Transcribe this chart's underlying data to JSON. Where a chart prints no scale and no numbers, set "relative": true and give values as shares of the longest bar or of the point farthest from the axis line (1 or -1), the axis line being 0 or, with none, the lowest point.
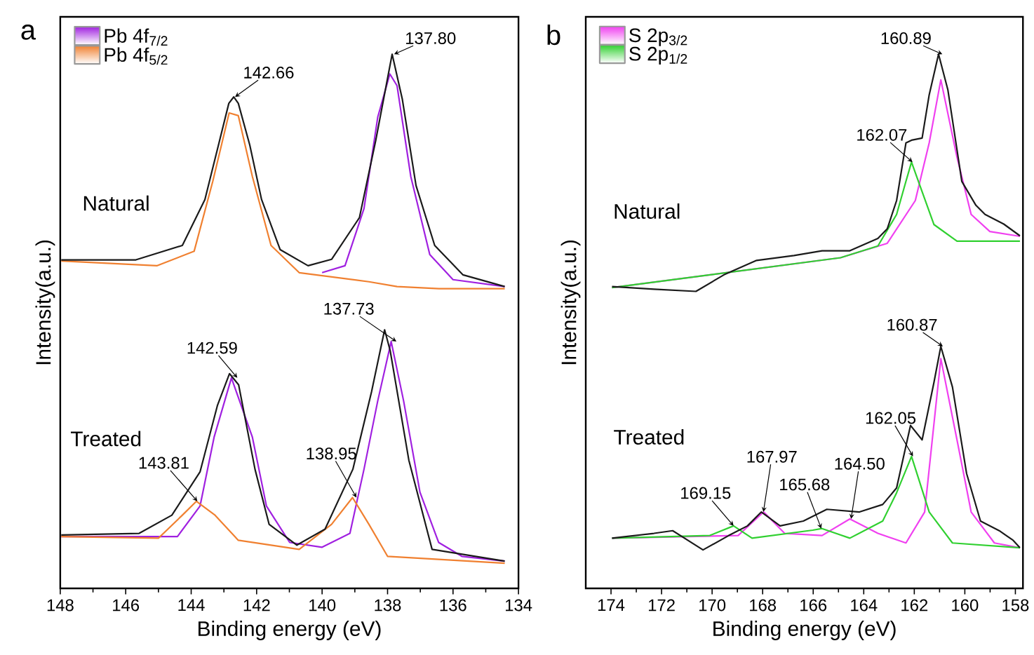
{
  "chart_data": [
    {
      "type": "line",
      "title": "a",
      "xlabel": "Binding energy (eV)",
      "ylabel": "Intensity(a.u.)",
      "relative": true,
      "legend": "top left",
      "xlim": [
        148,
        134
      ],
      "xticks": [
        148,
        146,
        144,
        142,
        140,
        138,
        136,
        134
      ],
      "series": [
        {
          "name": "Pb 4f$_{7/2}$",
          "color": "#a020e0",
          "x": [
            140.0,
            139.3,
            138.72,
            138.3,
            137.93,
            137.71,
            137.29,
            136.71,
            136.0,
            134.42
          ],
          "values": [
            0.591,
            0.604,
            0.711,
            0.882,
            0.963,
            0.941,
            0.771,
            0.625,
            0.578,
            0.565
          ]
        },
        {
          "name": "Pb 4f$_{5/2}$",
          "color": "#f08030",
          "x": [
            147.97,
            145.05,
            143.91,
            143.34,
            142.84,
            142.56,
            142.13,
            141.56,
            140.7,
            138.57,
            137.71,
            136.43,
            134.42
          ],
          "values": [
            0.613,
            0.604,
            0.631,
            0.762,
            0.89,
            0.885,
            0.771,
            0.642,
            0.591,
            0.574,
            0.565,
            0.561,
            0.561
          ]
        },
        {
          "color": "#1a1a1a",
          "x": [
            147.97,
            145.69,
            144.27,
            143.58,
            143.13,
            142.85,
            142.7,
            142.56,
            142.21,
            141.85,
            141.28,
            140.43,
            139.71,
            138.86,
            138.36,
            137.86,
            137.55,
            137.13,
            136.56,
            135.7,
            134.42
          ],
          "values": [
            0.615,
            0.615,
            0.642,
            0.728,
            0.839,
            0.908,
            0.92,
            0.908,
            0.83,
            0.728,
            0.634,
            0.604,
            0.616,
            0.694,
            0.839,
            1.0,
            0.916,
            0.754,
            0.642,
            0.587,
            0.565
          ]
        },
        {
          "color": "#a020e0",
          "x": [
            147.97,
            144.42,
            143.73,
            143.3,
            142.77,
            142.13,
            141.7,
            140.99,
            140.0,
            139.15,
            138.72,
            138.3,
            137.89,
            137.51,
            137.01,
            136.44,
            135.73,
            134.42
          ],
          "values": [
            0.097,
            0.097,
            0.154,
            0.283,
            0.394,
            0.283,
            0.154,
            0.086,
            0.077,
            0.103,
            0.223,
            0.351,
            0.462,
            0.351,
            0.18,
            0.086,
            0.06,
            0.051
          ]
        },
        {
          "color": "#f08030",
          "x": [
            147.97,
            145.0,
            144.27,
            143.84,
            143.27,
            142.56,
            140.7,
            139.71,
            139.07,
            138.57,
            138.0,
            134.42
          ],
          "values": [
            0.097,
            0.094,
            0.137,
            0.163,
            0.137,
            0.09,
            0.073,
            0.12,
            0.17,
            0.12,
            0.06,
            0.047
          ]
        },
        {
          "color": "#1a1a1a",
          "x": [
            147.97,
            145.59,
            144.59,
            143.73,
            143.2,
            142.83,
            142.55,
            142.05,
            141.62,
            140.77,
            139.91,
            139.06,
            138.49,
            138.09,
            137.92,
            137.35,
            136.64,
            134.42
          ],
          "values": [
            0.1,
            0.103,
            0.137,
            0.218,
            0.342,
            0.402,
            0.381,
            0.223,
            0.12,
            0.081,
            0.111,
            0.223,
            0.368,
            0.484,
            0.445,
            0.24,
            0.073,
            0.051
          ]
        }
      ],
      "annotations": [
        "Natural",
        "Treated",
        {
          "text": "142.66",
          "x": 142.66,
          "y": 0.92
        },
        {
          "text": "137.80",
          "x": 137.8,
          "y": 1.0
        },
        {
          "text": "142.59",
          "x": 142.59,
          "y": 0.394
        },
        {
          "text": "137.73",
          "x": 137.73,
          "y": 0.462
        },
        {
          "text": "143.81",
          "x": 143.81,
          "y": 0.163
        },
        {
          "text": "138.95",
          "x": 138.95,
          "y": 0.17
        }
      ]
    },
    {
      "type": "line",
      "title": "b",
      "xlabel": "Binding energy (eV)",
      "ylabel": "Intensity(a.u.)",
      "relative": true,
      "legend": "top left",
      "xlim": [
        175,
        157.7
      ],
      "xticks": [
        174,
        172,
        170,
        168,
        166,
        164,
        162,
        160,
        158
      ],
      "series": [
        {
          "name": "S 2p$_{3/2}$",
          "color": "#f040f0",
          "x": [
            173.96,
            164.92,
            163.07,
            161.96,
            161.41,
            160.95,
            160.31,
            159.75,
            159.01,
            157.82
          ],
          "values": [
            0.563,
            0.619,
            0.646,
            0.726,
            0.834,
            0.952,
            0.807,
            0.7,
            0.668,
            0.659
          ]
        },
        {
          "name": "S 2p$_{1/2}$",
          "color": "#30d030",
          "x": [
            173.96,
            164.92,
            163.44,
            162.7,
            162.33,
            162.11,
            161.77,
            161.22,
            160.31,
            157.82
          ],
          "values": [
            0.563,
            0.619,
            0.641,
            0.7,
            0.762,
            0.798,
            0.753,
            0.681,
            0.65,
            0.65
          ]
        },
        {
          "color": "#1a1a1a",
          "x": [
            173.96,
            172.3,
            170.64,
            169.53,
            168.24,
            166.76,
            165.65,
            164.55,
            163.44,
            163.07,
            162.7,
            162.33,
            162.11,
            161.69,
            161.41,
            161.04,
            160.67,
            160.12,
            159.56,
            159.2,
            158.46,
            157.82
          ],
          "values": [
            0.565,
            0.56,
            0.556,
            0.587,
            0.614,
            0.623,
            0.632,
            0.632,
            0.655,
            0.673,
            0.726,
            0.834,
            0.839,
            0.843,
            0.924,
            1.0,
            0.933,
            0.762,
            0.717,
            0.7,
            0.682,
            0.66
          ]
        },
        {
          "color": "#f040f0",
          "x": [
            173.96,
            168.97,
            167.96,
            167.13,
            165.65,
            164.55,
            163.44,
            162.33,
            161.59,
            160.95,
            160.31,
            159.75,
            158.83,
            157.82
          ],
          "values": [
            0.094,
            0.099,
            0.143,
            0.103,
            0.099,
            0.13,
            0.103,
            0.085,
            0.143,
            0.43,
            0.278,
            0.143,
            0.085,
            0.076
          ]
        },
        {
          "color": "#30d030",
          "x": [
            173.96,
            170.09,
            169.15,
            168.42,
            166.02,
            165.65,
            164.55,
            163.25,
            162.7,
            162.11,
            161.41,
            160.49,
            157.82
          ],
          "values": [
            0.094,
            0.099,
            0.117,
            0.094,
            0.109,
            0.112,
            0.094,
            0.126,
            0.179,
            0.247,
            0.143,
            0.085,
            0.076
          ]
        },
        {
          "color": "#1a1a1a",
          "x": [
            173.96,
            172.3,
            171.56,
            170.36,
            169.34,
            168.6,
            168.05,
            167.31,
            166.39,
            165.46,
            164.17,
            163.25,
            162.7,
            162.15,
            161.69,
            161.22,
            160.95,
            160.49,
            159.93,
            159.38,
            158.64,
            158.09,
            157.82
          ],
          "values": [
            0.094,
            0.103,
            0.108,
            0.072,
            0.099,
            0.117,
            0.143,
            0.117,
            0.126,
            0.148,
            0.143,
            0.157,
            0.188,
            0.305,
            0.278,
            0.386,
            0.453,
            0.377,
            0.215,
            0.126,
            0.108,
            0.09,
            0.076
          ]
        }
      ],
      "annotations": [
        "Natural",
        "Treated",
        {
          "text": "160.89",
          "x": 160.89,
          "y": 1.0
        },
        {
          "text": "162.07",
          "x": 162.07,
          "y": 0.798
        },
        {
          "text": "160.87",
          "x": 160.87,
          "y": 0.453
        },
        {
          "text": "162.05",
          "x": 162.05,
          "y": 0.247
        },
        {
          "text": "164.50",
          "x": 164.5,
          "y": 0.13
        },
        {
          "text": "165.68",
          "x": 165.68,
          "y": 0.112
        },
        {
          "text": "167.97",
          "x": 167.97,
          "y": 0.143
        },
        {
          "text": "169.15",
          "x": 169.15,
          "y": 0.117
        }
      ]
    }
  ]
}
